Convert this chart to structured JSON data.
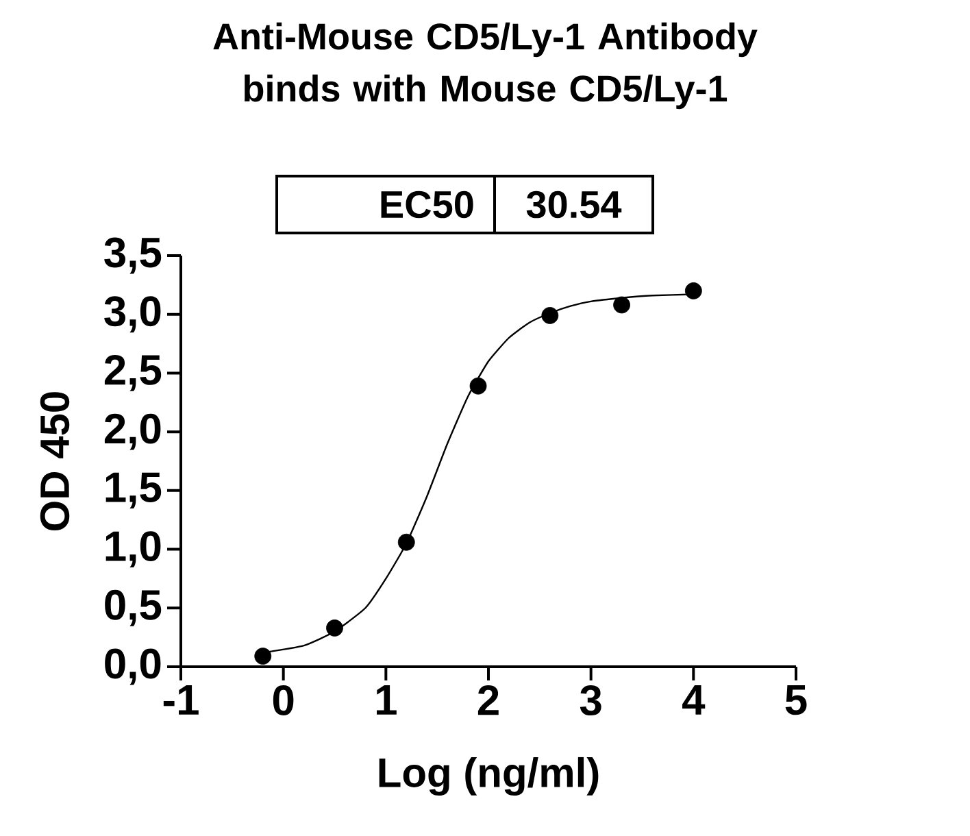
{
  "chart_data": {
    "type": "scatter",
    "title": "Anti-Mouse CD5/Ly-1 Antibody binds with Mouse CD5/Ly-1",
    "xlabel": "Log (ng/ml)",
    "ylabel": "OD 450",
    "annotations": [
      "EC50",
      "30.54"
    ],
    "xlim": [
      -1,
      5
    ],
    "xticks": [
      -1,
      0,
      1,
      2,
      3,
      4,
      5
    ],
    "ylim": [
      0,
      3.5
    ],
    "yticks": [
      {
        "value": 0,
        "label": "0,0"
      },
      {
        "value": 0.5,
        "label": "0,5"
      },
      {
        "value": 1,
        "label": "1,0"
      },
      {
        "value": 1.5,
        "label": "1,5"
      },
      {
        "value": 2,
        "label": "2,0"
      },
      {
        "value": 2.5,
        "label": "2,5"
      },
      {
        "value": 3,
        "label": "3,0"
      },
      {
        "value": 3.5,
        "label": "3,5"
      }
    ],
    "series": [
      {
        "color": "#000000",
        "marker": "circle",
        "x": [
          -0.2,
          0.5,
          1.2,
          1.9,
          2.6,
          3.3,
          4.0
        ],
        "values": [
          0.09,
          0.33,
          1.06,
          2.39,
          2.99,
          3.08,
          3.2
        ]
      },
      {
        "type": "line",
        "color": "#000000",
        "marker": "none",
        "x": [
          -0.2,
          0.2,
          0.5,
          0.8,
          1.0,
          1.2,
          1.4,
          1.6,
          1.8,
          2.0,
          2.2,
          2.4,
          2.6,
          2.8,
          3.0,
          3.3,
          3.6,
          4.0
        ],
        "values": [
          0.12,
          0.18,
          0.3,
          0.5,
          0.75,
          1.05,
          1.45,
          1.9,
          2.3,
          2.6,
          2.8,
          2.93,
          3.01,
          3.07,
          3.11,
          3.14,
          3.16,
          3.17
        ]
      }
    ]
  }
}
